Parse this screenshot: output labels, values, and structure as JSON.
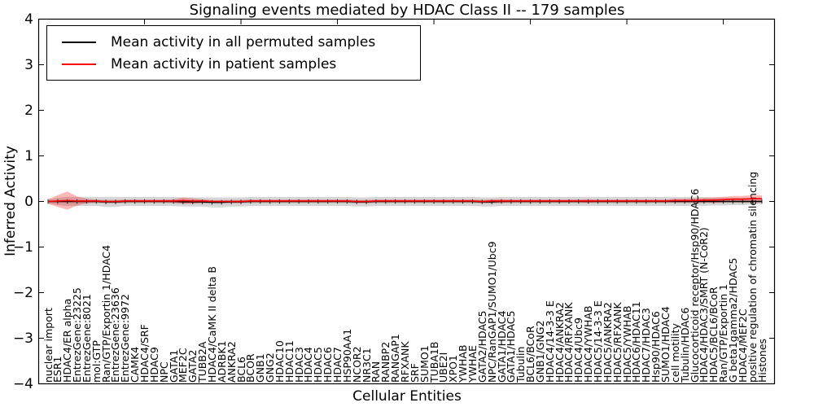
{
  "chart_data": {
    "type": "line",
    "title": "Signaling events mediated by HDAC Class II -- 179 samples",
    "xlabel": "Cellular Entities",
    "ylabel": "Inferred Activity",
    "ylim": [
      -4,
      4
    ],
    "y_ticks": [
      4,
      3,
      2,
      1,
      0,
      -1,
      -2,
      -3,
      -4
    ],
    "grid": false,
    "legend_position": "upper left",
    "categories": [
      "nuclear import",
      "ESR1",
      "HDAC4/ER alpha",
      "EntrezGene:23225",
      "EntrezGene:8021",
      "mol:GTP",
      "Ran/GTP/Exportin 1/HDAC4",
      "EntrezGene:23636",
      "EntrezGene:9972",
      "CAMK4",
      "HDAC4/SRF",
      "HDAC9",
      "NPC",
      "GATA1",
      "MEF2C",
      "GATA2",
      "TUBB2A",
      "HDAC4/CaMK II delta B",
      "ADRBK1",
      "ANKRA2",
      "BCL6",
      "BCOR",
      "GNB1",
      "GNG2",
      "HDAC10",
      "HDAC11",
      "HDAC3",
      "HDAC4",
      "HDAC5",
      "HDAC6",
      "HDAC7",
      "HSP90AA1",
      "NCOR2",
      "NR3C1",
      "RAN",
      "RANBP2",
      "RANGAP1",
      "RFXANK",
      "SRF",
      "SUMO1",
      "TUBA1B",
      "UBE2I",
      "XPO1",
      "YWHAB",
      "YWHAE",
      "GATA2/HDAC5",
      "NPC/RanGAP1/SUMO1/Ubc9",
      "GATA1/HDAC4",
      "GATA1/HDAC5",
      "Tubulin",
      "BCL6/BCoR",
      "GNB1/GNG2",
      "HDAC4/14-3-3 E",
      "HDAC4/ANKRA2",
      "HDAC4/RFXANK",
      "HDAC4/Ubc9",
      "HDAC4/YWHAB",
      "HDAC5/14-3-3 E",
      "HDAC5/ANKRA2",
      "HDAC5/RFXANK",
      "HDAC5/YWHAB",
      "HDAC6/HDAC11",
      "HDAC7/HDAC3",
      "Hsp90/HDAC6",
      "SUMO1/HDAC4",
      "cell motility",
      "Tubulin/HDAC6",
      "Glucocorticoid receptor/Hsp90/HDAC6",
      "HDAC4/HDAC3/SMRT (N-CoR2)",
      "HDAC5/BCL6/BCoR",
      "Ran/GTP/Exportin 1",
      "G beta1gamma2/HDAC5",
      "HDAC4/MEF2C",
      "positive regulation of chromatin silencing",
      "Histones"
    ],
    "series": [
      {
        "name": "Mean activity in all permuted samples",
        "color": "#000000",
        "values": [
          0,
          0,
          0,
          0,
          0,
          0,
          -0.01,
          -0.01,
          0,
          0,
          0,
          0,
          0,
          0,
          -0.01,
          -0.01,
          -0.01,
          -0.02,
          -0.02,
          -0.01,
          -0.01,
          0,
          0,
          0,
          0,
          0,
          0,
          0,
          0,
          0,
          0,
          0,
          -0.01,
          -0.01,
          0,
          0,
          0,
          0,
          0,
          0,
          0,
          0,
          0,
          0,
          0,
          -0.01,
          -0.01,
          0,
          0,
          0,
          0,
          0,
          0,
          0,
          0,
          0,
          0,
          0,
          0,
          0,
          0,
          0,
          0,
          0,
          0,
          0,
          0,
          0,
          0,
          0,
          0,
          0,
          0,
          0,
          0
        ],
        "band_halfwidth": [
          0.05,
          0.08,
          0.1,
          0.1,
          0.1,
          0.1,
          0.11,
          0.11,
          0.1,
          0.1,
          0.1,
          0.1,
          0.1,
          0.1,
          0.1,
          0.1,
          0.1,
          0.11,
          0.11,
          0.1,
          0.1,
          0.1,
          0.1,
          0.1,
          0.1,
          0.1,
          0.1,
          0.1,
          0.1,
          0.1,
          0.1,
          0.1,
          0.1,
          0.1,
          0.1,
          0.1,
          0.1,
          0.1,
          0.1,
          0.1,
          0.1,
          0.1,
          0.1,
          0.1,
          0.1,
          0.1,
          0.1,
          0.1,
          0.1,
          0.1,
          0.1,
          0.1,
          0.1,
          0.1,
          0.1,
          0.1,
          0.1,
          0.1,
          0.1,
          0.1,
          0.1,
          0.1,
          0.1,
          0.1,
          0.1,
          0.1,
          0.1,
          0.1,
          0.1,
          0.09,
          0.09,
          0.08,
          0.08,
          0.07,
          0.06
        ]
      },
      {
        "name": "Mean activity in patient samples",
        "color": "#ff0000",
        "values": [
          0,
          0.01,
          0.02,
          0.01,
          0.01,
          0.01,
          0,
          0,
          0.01,
          0.01,
          0.01,
          0.01,
          0.01,
          0.01,
          0.02,
          0.01,
          0.01,
          0,
          0,
          0,
          0,
          0.01,
          0.01,
          0.01,
          0.01,
          0.01,
          0.01,
          0.01,
          0.01,
          0.01,
          0.01,
          0.01,
          0,
          0,
          0.01,
          0.01,
          0.01,
          0.01,
          0.01,
          0.01,
          0.01,
          0.01,
          0.01,
          0.01,
          0.01,
          0,
          0.01,
          0.01,
          0.01,
          0.01,
          0.01,
          0.01,
          0.01,
          0.01,
          0.01,
          0.01,
          0.01,
          0.01,
          0.01,
          0.01,
          0.01,
          0.01,
          0.01,
          0.01,
          0.01,
          0.02,
          0.02,
          0.02,
          0.03,
          0.03,
          0.04,
          0.05,
          0.05,
          0.06,
          0.06
        ],
        "band_halfwidth": [
          0.05,
          0.13,
          0.2,
          0.1,
          0.05,
          0.03,
          0.03,
          0.03,
          0.03,
          0.03,
          0.03,
          0.03,
          0.03,
          0.04,
          0.07,
          0.06,
          0.04,
          0.03,
          0.03,
          0.03,
          0.03,
          0.03,
          0.03,
          0.03,
          0.03,
          0.03,
          0.03,
          0.03,
          0.03,
          0.03,
          0.03,
          0.03,
          0.03,
          0.03,
          0.03,
          0.03,
          0.03,
          0.03,
          0.03,
          0.03,
          0.03,
          0.03,
          0.03,
          0.03,
          0.03,
          0.03,
          0.04,
          0.04,
          0.03,
          0.03,
          0.03,
          0.03,
          0.03,
          0.03,
          0.03,
          0.03,
          0.04,
          0.03,
          0.03,
          0.03,
          0.03,
          0.03,
          0.03,
          0.03,
          0.03,
          0.04,
          0.04,
          0.05,
          0.05,
          0.06,
          0.06,
          0.07,
          0.07,
          0.08,
          0.08
        ]
      }
    ]
  },
  "colors": {
    "permuted_line": "#000000",
    "patient_line": "#ff0000",
    "permuted_band_fill": "rgba(0,0,0,0.16)",
    "patient_band_fill": "rgba(255,0,0,0.28)",
    "frame": "#000000"
  }
}
